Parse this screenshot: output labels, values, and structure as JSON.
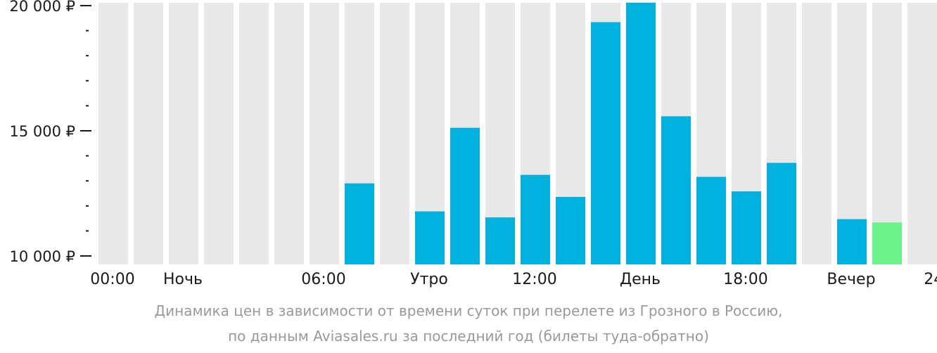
{
  "chart_data": {
    "type": "bar",
    "categories": [
      "00:00",
      "01:00",
      "02:00",
      "03:00",
      "04:00",
      "05:00",
      "06:00",
      "07:00",
      "08:00",
      "09:00",
      "10:00",
      "11:00",
      "12:00",
      "13:00",
      "14:00",
      "15:00",
      "16:00",
      "17:00",
      "18:00",
      "19:00",
      "20:00",
      "21:00",
      "22:00",
      "23:00"
    ],
    "values": [
      null,
      null,
      null,
      null,
      null,
      null,
      null,
      12900,
      null,
      11780,
      15120,
      11540,
      13240,
      12360,
      19340,
      20120,
      15580,
      13160,
      12580,
      13720,
      null,
      11470,
      11340,
      null
    ],
    "highlight_index": 22,
    "ylim": [
      10000,
      20100
    ],
    "yticks": [
      {
        "value": 20000,
        "label": "20 000 ₽"
      },
      {
        "value": 15000,
        "label": "15 000 ₽"
      },
      {
        "value": 10000,
        "label": "10 000 ₽"
      }
    ],
    "minor_step": 1000,
    "xticks": [
      {
        "pos": 0,
        "label": "00:00"
      },
      {
        "pos": 2,
        "label": "Ночь"
      },
      {
        "pos": 6,
        "label": "06:00"
      },
      {
        "pos": 9,
        "label": "Утро"
      },
      {
        "pos": 12,
        "label": "12:00"
      },
      {
        "pos": 15,
        "label": "День"
      },
      {
        "pos": 18,
        "label": "18:00"
      },
      {
        "pos": 21,
        "label": "Вечер"
      },
      {
        "pos": 24,
        "label": "24:00"
      }
    ],
    "colors": {
      "bar": "#00b0dd",
      "highlight": "#6cf28a",
      "background": "#e8e8e8",
      "axis": "#1a1a1a"
    }
  },
  "caption": {
    "line1": "Динамика цен в зависимости от времени суток при перелете из Грозного в Россию,",
    "line2": "по данным Aviasales.ru за последний год (билеты туда-обратно)"
  }
}
